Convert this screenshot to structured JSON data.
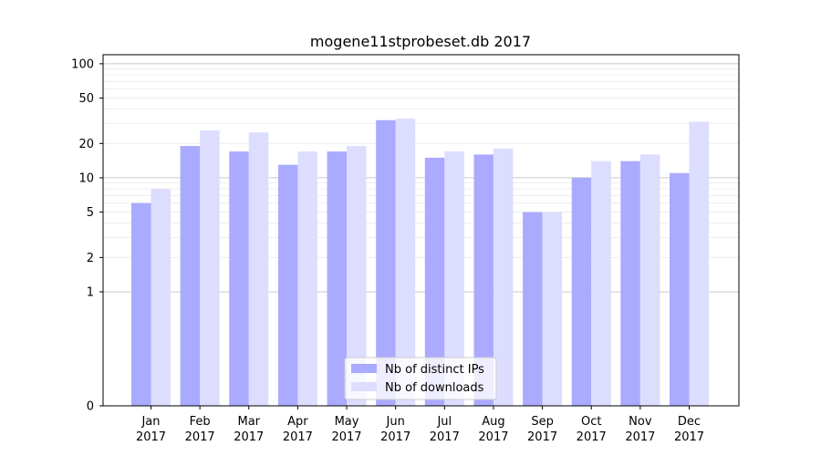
{
  "chart_data": {
    "type": "bar",
    "title": "mogene11stprobeset.db 2017",
    "xlabel": "",
    "ylabel": "",
    "yscale": "symlog",
    "ylim": [
      0,
      120
    ],
    "yticks": [
      0,
      1,
      2,
      5,
      10,
      20,
      50,
      100
    ],
    "ytick_labels": [
      "0",
      "1",
      "2",
      "5",
      "10",
      "20",
      "50",
      "100"
    ],
    "categories": [
      "Jan\n2017",
      "Feb\n2017",
      "Mar\n2017",
      "Apr\n2017",
      "May\n2017",
      "Jun\n2017",
      "Jul\n2017",
      "Aug\n2017",
      "Sep\n2017",
      "Oct\n2017",
      "Nov\n2017",
      "Dec\n2017"
    ],
    "category_lines": [
      [
        "Jan",
        "2017"
      ],
      [
        "Feb",
        "2017"
      ],
      [
        "Mar",
        "2017"
      ],
      [
        "Apr",
        "2017"
      ],
      [
        "May",
        "2017"
      ],
      [
        "Jun",
        "2017"
      ],
      [
        "Jul",
        "2017"
      ],
      [
        "Aug",
        "2017"
      ],
      [
        "Sep",
        "2017"
      ],
      [
        "Oct",
        "2017"
      ],
      [
        "Nov",
        "2017"
      ],
      [
        "Dec",
        "2017"
      ]
    ],
    "series": [
      {
        "name": "Nb of distinct IPs",
        "color": "#aaaaff",
        "values": [
          6,
          19,
          17,
          13,
          17,
          32,
          15,
          16,
          5,
          10,
          14,
          11
        ]
      },
      {
        "name": "Nb of downloads",
        "color": "#ddddff",
        "values": [
          8,
          26,
          25,
          17,
          19,
          33,
          17,
          18,
          5,
          14,
          16,
          31
        ]
      }
    ],
    "grid": "horizontal",
    "legend_position": "bottom-center"
  }
}
